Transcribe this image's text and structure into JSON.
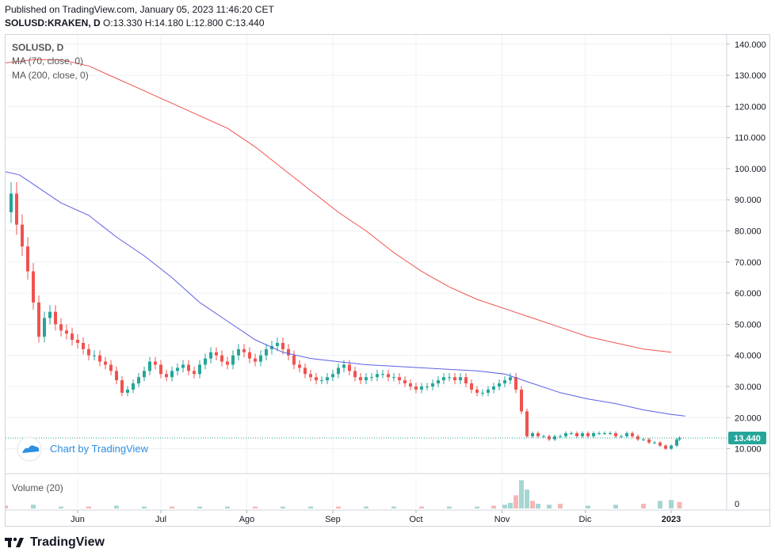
{
  "header": {
    "published": "Published on TradingView.com, January 05, 2023 11:46:20 CET",
    "symbol_line": "SOLUSD:KRAKEN, D",
    "ohlc": "O:13.330 H:14.180 L:12.800 C:13.440"
  },
  "legend": {
    "symbol": "SOLUSD, D",
    "ma70": "MA (70, close, 0)",
    "ma200": "MA (200, close, 0)",
    "volume": "Volume (20)"
  },
  "watermark": "Chart by TradingView",
  "footer": {
    "brand": "TradingView"
  },
  "price_label": "13.440",
  "colors": {
    "up": "#26a69a",
    "down": "#ef5350",
    "ma70": "#ef5350",
    "ma200": "#5b5fe6",
    "grid": "#eef0f4",
    "price_tag": "#26a69a"
  },
  "chart_data": {
    "type": "candlestick",
    "title": "SOLUSD, D",
    "y_ticks": [
      "140.000",
      "130.000",
      "120.000",
      "110.000",
      "100.000",
      "90.000",
      "80.000",
      "70.000",
      "60.000",
      "50.000",
      "40.000",
      "30.000",
      "20.000",
      "10.000"
    ],
    "ylim": [
      2,
      143
    ],
    "x_ticks": [
      "Jun",
      "Jul",
      "Ago",
      "Sep",
      "Oct",
      "Nov",
      "Dic",
      "2023"
    ],
    "x_tick_days": [
      26,
      56,
      87,
      118,
      148,
      179,
      209,
      240
    ],
    "x_range": [
      0,
      260
    ],
    "last_close": 13.44,
    "volume_ticks": [
      "0"
    ],
    "close_points": [
      [
        0,
        86
      ],
      [
        2,
        92
      ],
      [
        4,
        82
      ],
      [
        6,
        75
      ],
      [
        8,
        67
      ],
      [
        10,
        57
      ],
      [
        12,
        46
      ],
      [
        14,
        52
      ],
      [
        16,
        54
      ],
      [
        18,
        50
      ],
      [
        20,
        48
      ],
      [
        22,
        47
      ],
      [
        24,
        45
      ],
      [
        26,
        44
      ],
      [
        28,
        42
      ],
      [
        30,
        40
      ],
      [
        32,
        40
      ],
      [
        34,
        38
      ],
      [
        36,
        37
      ],
      [
        38,
        35
      ],
      [
        40,
        32
      ],
      [
        42,
        28
      ],
      [
        44,
        29
      ],
      [
        46,
        31
      ],
      [
        48,
        33
      ],
      [
        50,
        35
      ],
      [
        52,
        38
      ],
      [
        54,
        37
      ],
      [
        56,
        34
      ],
      [
        58,
        33
      ],
      [
        60,
        35
      ],
      [
        62,
        36
      ],
      [
        64,
        37
      ],
      [
        66,
        35
      ],
      [
        68,
        34
      ],
      [
        70,
        37
      ],
      [
        72,
        39
      ],
      [
        74,
        41
      ],
      [
        76,
        40
      ],
      [
        78,
        38
      ],
      [
        80,
        37
      ],
      [
        82,
        40
      ],
      [
        84,
        42
      ],
      [
        86,
        41
      ],
      [
        88,
        39
      ],
      [
        90,
        38
      ],
      [
        92,
        40
      ],
      [
        94,
        42
      ],
      [
        96,
        43
      ],
      [
        98,
        44
      ],
      [
        100,
        42
      ],
      [
        102,
        40
      ],
      [
        104,
        37
      ],
      [
        106,
        36
      ],
      [
        108,
        34
      ],
      [
        110,
        33
      ],
      [
        112,
        32
      ],
      [
        114,
        32
      ],
      [
        116,
        33
      ],
      [
        118,
        34
      ],
      [
        120,
        36
      ],
      [
        122,
        37
      ],
      [
        124,
        35
      ],
      [
        126,
        33
      ],
      [
        128,
        32
      ],
      [
        130,
        33
      ],
      [
        132,
        33
      ],
      [
        134,
        34
      ],
      [
        136,
        34
      ],
      [
        138,
        33
      ],
      [
        140,
        33
      ],
      [
        142,
        32
      ],
      [
        144,
        31
      ],
      [
        146,
        30
      ],
      [
        148,
        29
      ],
      [
        150,
        30
      ],
      [
        152,
        30
      ],
      [
        154,
        31
      ],
      [
        156,
        32
      ],
      [
        158,
        33
      ],
      [
        160,
        33
      ],
      [
        162,
        32
      ],
      [
        164,
        33
      ],
      [
        166,
        31
      ],
      [
        168,
        29
      ],
      [
        170,
        28
      ],
      [
        172,
        28
      ],
      [
        174,
        29
      ],
      [
        176,
        30
      ],
      [
        178,
        31
      ],
      [
        180,
        32
      ],
      [
        182,
        33
      ],
      [
        184,
        29
      ],
      [
        186,
        22
      ],
      [
        188,
        14
      ],
      [
        190,
        15
      ],
      [
        192,
        14
      ],
      [
        194,
        14
      ],
      [
        196,
        13
      ],
      [
        198,
        14
      ],
      [
        200,
        14
      ],
      [
        202,
        15
      ],
      [
        204,
        15
      ],
      [
        206,
        14
      ],
      [
        208,
        15
      ],
      [
        210,
        14
      ],
      [
        212,
        15
      ],
      [
        214,
        15
      ],
      [
        216,
        15
      ],
      [
        218,
        15
      ],
      [
        220,
        14
      ],
      [
        222,
        14
      ],
      [
        224,
        15
      ],
      [
        226,
        14
      ],
      [
        228,
        13
      ],
      [
        230,
        13
      ],
      [
        232,
        12
      ],
      [
        234,
        12
      ],
      [
        236,
        11
      ],
      [
        238,
        10
      ],
      [
        240,
        11
      ],
      [
        242,
        13
      ],
      [
        243,
        13.44
      ]
    ],
    "ma70_points": [
      [
        0,
        99
      ],
      [
        5,
        98
      ],
      [
        10,
        95
      ],
      [
        20,
        89
      ],
      [
        30,
        85
      ],
      [
        40,
        78
      ],
      [
        50,
        72
      ],
      [
        60,
        65
      ],
      [
        70,
        57
      ],
      [
        80,
        51
      ],
      [
        90,
        45
      ],
      [
        100,
        41
      ],
      [
        110,
        39
      ],
      [
        120,
        38
      ],
      [
        130,
        37
      ],
      [
        140,
        36.5
      ],
      [
        150,
        36
      ],
      [
        160,
        35.5
      ],
      [
        170,
        35
      ],
      [
        180,
        34
      ],
      [
        190,
        31
      ],
      [
        200,
        28
      ],
      [
        210,
        26
      ],
      [
        220,
        24.5
      ],
      [
        230,
        22.5
      ],
      [
        240,
        21
      ],
      [
        245,
        20.5
      ]
    ],
    "ma200_points": [
      [
        0,
        134
      ],
      [
        10,
        135
      ],
      [
        20,
        135
      ],
      [
        30,
        133
      ],
      [
        40,
        129
      ],
      [
        50,
        125
      ],
      [
        60,
        121
      ],
      [
        70,
        117
      ],
      [
        80,
        113
      ],
      [
        90,
        107
      ],
      [
        100,
        100
      ],
      [
        110,
        93
      ],
      [
        120,
        86
      ],
      [
        130,
        80
      ],
      [
        140,
        73
      ],
      [
        150,
        67
      ],
      [
        160,
        62
      ],
      [
        170,
        58
      ],
      [
        180,
        55
      ],
      [
        190,
        52
      ],
      [
        200,
        49
      ],
      [
        210,
        46
      ],
      [
        220,
        44
      ],
      [
        230,
        42
      ],
      [
        240,
        41
      ]
    ],
    "volume_points": [
      [
        0,
        3
      ],
      [
        10,
        4
      ],
      [
        20,
        2
      ],
      [
        30,
        2
      ],
      [
        40,
        3
      ],
      [
        50,
        2
      ],
      [
        60,
        2
      ],
      [
        70,
        2
      ],
      [
        80,
        2
      ],
      [
        90,
        2
      ],
      [
        100,
        2
      ],
      [
        110,
        2
      ],
      [
        120,
        2
      ],
      [
        130,
        2
      ],
      [
        140,
        2
      ],
      [
        150,
        2
      ],
      [
        160,
        2
      ],
      [
        170,
        2
      ],
      [
        176,
        3
      ],
      [
        180,
        4
      ],
      [
        182,
        6
      ],
      [
        184,
        14
      ],
      [
        186,
        30
      ],
      [
        188,
        20
      ],
      [
        190,
        8
      ],
      [
        192,
        5
      ],
      [
        196,
        4
      ],
      [
        200,
        5
      ],
      [
        210,
        3
      ],
      [
        220,
        4
      ],
      [
        230,
        5
      ],
      [
        236,
        8
      ],
      [
        240,
        9
      ],
      [
        243,
        7
      ]
    ]
  }
}
